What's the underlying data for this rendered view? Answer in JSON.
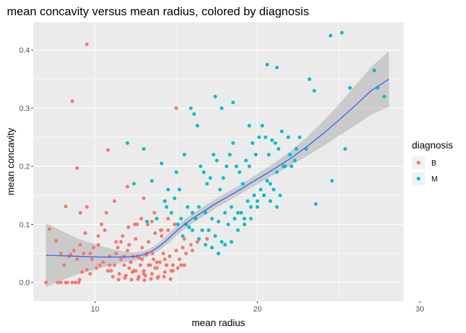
{
  "chart_data": {
    "type": "scatter",
    "title": "mean concavity versus mean radius, colored by diagnosis",
    "xlabel": "mean radius",
    "ylabel": "mean concavity",
    "xlim": [
      6.2,
      29
    ],
    "ylim": [
      -0.032,
      0.448
    ],
    "x_ticks": [
      {
        "value": 10,
        "label": "10"
      },
      {
        "value": 20,
        "label": "20"
      },
      {
        "value": 30,
        "label": "30"
      }
    ],
    "y_ticks": [
      {
        "value": 0.0,
        "label": "0.0"
      },
      {
        "value": 0.1,
        "label": "0.1"
      },
      {
        "value": 0.2,
        "label": "0.2"
      },
      {
        "value": 0.3,
        "label": "0.3"
      },
      {
        "value": 0.4,
        "label": "0.4"
      }
    ],
    "grid": true,
    "legend_position": "right",
    "legend_title": "diagnosis",
    "colors": {
      "panel": "#ebebeb",
      "grid": "#ffffff",
      "B": "#f8766d",
      "M": "#00bfc4",
      "smooth_line": "#3366ff",
      "smooth_band": "#999999"
    },
    "series": [
      {
        "name": "B",
        "x": [
          6.98,
          8.2,
          7.7,
          9.0,
          8.8,
          8.6,
          8.5,
          8.9,
          9.5,
          9.2,
          9.7,
          10.8,
          10.3,
          9.3,
          9.8,
          10.5,
          10.1,
          10.9,
          11.2,
          11.4,
          11.0,
          11.6,
          11.8,
          12.0,
          12.2,
          12.4,
          12.6,
          12.8,
          13.0,
          13.2,
          13.4,
          13.6,
          13.8,
          14.0,
          14.2,
          14.4,
          14.6,
          14.8,
          15.0,
          15.2,
          15.4,
          15.6,
          15.9,
          16.3,
          16.9,
          17.2,
          17.6,
          11.1,
          11.5,
          11.9,
          12.3,
          12.7,
          13.1,
          13.5,
          13.9,
          14.3,
          14.7,
          15.1,
          15.5,
          11.3,
          11.7,
          12.1,
          12.5,
          12.9,
          13.3,
          13.7,
          14.1,
          14.5,
          14.9,
          10.6,
          10.2,
          9.9,
          9.4,
          9.1,
          8.7,
          8.3,
          8.1,
          7.9,
          10.4,
          10.7,
          11.45,
          11.85,
          12.25,
          12.65,
          13.05,
          13.45,
          13.85,
          14.25,
          14.65,
          12.05,
          12.45,
          12.85,
          13.25,
          13.65,
          14.05,
          12.35,
          12.75,
          13.15,
          13.55,
          9.05,
          8.6,
          9.5,
          10.8,
          11.2,
          12.0,
          12.6,
          13.0,
          13.5,
          14.1,
          14.5,
          15.0,
          15.5,
          16.0,
          11.3,
          11.8,
          12.2,
          12.9,
          13.3,
          13.8,
          14.3,
          14.8,
          15.3,
          12.1,
          12.5,
          13.0,
          13.7,
          14.4,
          11.6,
          10.9,
          10.2,
          9.7
        ],
        "y": [
          0.0,
          0.0,
          0.0,
          0.0,
          0.0,
          0.0,
          0.048,
          0.04,
          0.022,
          0.018,
          0.015,
          0.02,
          0.03,
          0.05,
          0.04,
          0.035,
          0.025,
          0.045,
          0.03,
          0.06,
          0.02,
          0.04,
          0.03,
          0.055,
          0.035,
          0.02,
          0.045,
          0.03,
          0.02,
          0.05,
          0.03,
          0.04,
          0.025,
          0.035,
          0.05,
          0.03,
          0.045,
          0.03,
          0.055,
          0.04,
          0.06,
          0.05,
          0.065,
          0.07,
          0.075,
          0.06,
          0.05,
          0.01,
          0.015,
          0.012,
          0.018,
          0.01,
          0.012,
          0.015,
          0.01,
          0.018,
          0.02,
          0.025,
          0.03,
          0.07,
          0.08,
          0.065,
          0.075,
          0.06,
          0.07,
          0.085,
          0.08,
          0.09,
          0.1,
          0.09,
          0.08,
          0.06,
          0.085,
          0.065,
          0.055,
          0.0,
          0.03,
          0.0,
          0.1,
          0.12,
          0.005,
          0.008,
          0.005,
          0.006,
          0.004,
          0.006,
          0.008,
          0.01,
          0.006,
          0.095,
          0.1,
          0.11,
          0.1,
          0.12,
          0.09,
          0.045,
          0.042,
          0.048,
          0.05,
          0.005,
          0.312,
          0.41,
          0.228,
          0.14,
          0.165,
          0.1,
          0.145,
          0.105,
          0.09,
          0.11,
          0.3,
          0.075,
          0.055,
          0.05,
          0.045,
          0.035,
          0.04,
          0.03,
          0.035,
          0.04,
          0.02,
          0.03,
          0.025,
          0.02,
          0.015,
          0.025,
          0.03,
          0.07,
          0.03,
          0.065,
          0.05
        ],
        "extra": {
          "x": [
            7.2,
            7.6,
            8.2,
            8.9,
            9.5,
            9.1,
            8.4,
            7.9
          ],
          "y": [
            0.092,
            0.072,
            0.131,
            0.197,
            0.13,
            0.12,
            0.045,
            0.05
          ]
        }
      },
      {
        "name": "M",
        "x": [
          12.0,
          12.4,
          13.0,
          13.5,
          14.1,
          14.5,
          15.0,
          15.2,
          15.5,
          15.7,
          15.9,
          16.1,
          16.3,
          16.5,
          16.7,
          16.9,
          17.1,
          17.3,
          17.5,
          17.7,
          17.9,
          18.1,
          18.3,
          18.5,
          18.7,
          18.9,
          19.1,
          19.3,
          19.5,
          19.7,
          19.9,
          20.1,
          20.3,
          20.5,
          20.7,
          20.9,
          21.1,
          21.3,
          21.5,
          21.7,
          21.9,
          22.1,
          22.3,
          22.6,
          23.0,
          23.2,
          23.5,
          24.5,
          25.2,
          25.7,
          27.2,
          27.4,
          27.8,
          23.6,
          24.6,
          16.0,
          16.4,
          16.8,
          17.2,
          17.6,
          18.0,
          18.4,
          18.8,
          19.2,
          19.6,
          20.0,
          20.4,
          20.8,
          21.2,
          15.1,
          15.4,
          15.8,
          16.2,
          16.6,
          17.0,
          17.4,
          17.8,
          18.2,
          18.6,
          19.0,
          19.4,
          19.8,
          20.2,
          20.6,
          21.0,
          21.4,
          14.3,
          14.7,
          15.3,
          15.6,
          16.0,
          16.4,
          16.8,
          17.2,
          17.6,
          18.0,
          18.4,
          18.8,
          19.2,
          19.6,
          20.0,
          20.4,
          20.8,
          21.2,
          21.6,
          22.0,
          13.2,
          13.8,
          14.4,
          14.9,
          17.4,
          17.8,
          18.5,
          19.5,
          20.6,
          22.4,
          21.2,
          25.4
        ],
        "y": [
          0.24,
          0.17,
          0.23,
          0.175,
          0.205,
          0.16,
          0.19,
          0.16,
          0.22,
          0.13,
          0.3,
          0.29,
          0.27,
          0.2,
          0.19,
          0.17,
          0.18,
          0.22,
          0.21,
          0.16,
          0.18,
          0.2,
          0.22,
          0.24,
          0.2,
          0.19,
          0.17,
          0.21,
          0.2,
          0.24,
          0.22,
          0.25,
          0.27,
          0.25,
          0.22,
          0.245,
          0.24,
          0.23,
          0.26,
          0.2,
          0.25,
          0.2,
          0.21,
          0.25,
          0.23,
          0.35,
          0.33,
          0.425,
          0.43,
          0.335,
          0.365,
          0.335,
          0.32,
          0.135,
          0.175,
          0.12,
          0.13,
          0.12,
          0.11,
          0.105,
          0.12,
          0.13,
          0.12,
          0.11,
          0.13,
          0.14,
          0.15,
          0.14,
          0.13,
          0.1,
          0.08,
          0.095,
          0.11,
          0.09,
          0.09,
          0.08,
          0.07,
          0.1,
          0.11,
          0.12,
          0.14,
          0.15,
          0.16,
          0.175,
          0.16,
          0.15,
          0.14,
          0.12,
          0.11,
          0.1,
          0.09,
          0.075,
          0.065,
          0.06,
          0.05,
          0.065,
          0.07,
          0.09,
          0.1,
          0.11,
          0.13,
          0.15,
          0.17,
          0.19,
          0.2,
          0.22,
          0.105,
          0.11,
          0.13,
          0.145,
          0.32,
          0.3,
          0.31,
          0.27,
          0.375,
          0.23,
          0.37,
          0.23
        ]
      }
    ],
    "smooth": {
      "x": [
        6.98,
        8,
        9,
        10,
        11,
        12,
        12.5,
        13,
        13.5,
        14,
        14.5,
        15,
        15.5,
        16,
        16.5,
        17,
        17.5,
        18,
        18.5,
        19,
        19.5,
        20,
        21,
        22,
        23,
        24,
        25,
        26,
        27,
        28.1
      ],
      "y": [
        0.047,
        0.046,
        0.045,
        0.044,
        0.044,
        0.044,
        0.045,
        0.048,
        0.054,
        0.063,
        0.075,
        0.088,
        0.1,
        0.11,
        0.119,
        0.128,
        0.137,
        0.145,
        0.153,
        0.161,
        0.17,
        0.178,
        0.195,
        0.213,
        0.233,
        0.255,
        0.279,
        0.304,
        0.33,
        0.35
      ],
      "se": [
        0.055,
        0.042,
        0.03,
        0.022,
        0.014,
        0.008,
        0.007,
        0.006,
        0.006,
        0.007,
        0.008,
        0.008,
        0.008,
        0.008,
        0.008,
        0.008,
        0.008,
        0.008,
        0.008,
        0.008,
        0.008,
        0.009,
        0.01,
        0.012,
        0.016,
        0.021,
        0.027,
        0.034,
        0.041,
        0.048
      ]
    }
  }
}
